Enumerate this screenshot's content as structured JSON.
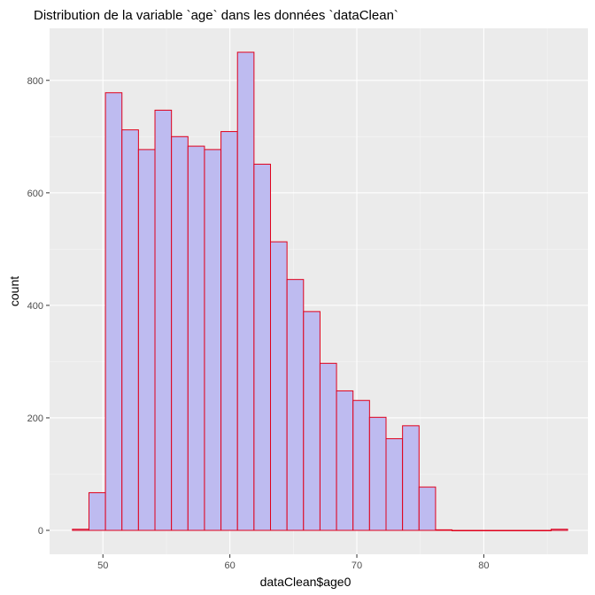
{
  "chart_data": {
    "type": "bar",
    "title": "Distribution de la variable `age` dans les données `dataClean`",
    "xlabel": "dataClean$age0",
    "ylabel": "count",
    "xlim": [
      45.8,
      88.2
    ],
    "ylim": [
      -42.5,
      892.5
    ],
    "x_ticks": [
      50,
      60,
      70,
      80
    ],
    "y_ticks": [
      0,
      200,
      400,
      600,
      800
    ],
    "bin_width": 1.3,
    "bins": [
      {
        "x0": 47.6,
        "x1": 48.9,
        "count": 2
      },
      {
        "x0": 48.9,
        "x1": 50.2,
        "count": 67
      },
      {
        "x0": 50.2,
        "x1": 51.5,
        "count": 778
      },
      {
        "x0": 51.5,
        "x1": 52.8,
        "count": 712
      },
      {
        "x0": 52.8,
        "x1": 54.1,
        "count": 677
      },
      {
        "x0": 54.1,
        "x1": 55.4,
        "count": 747
      },
      {
        "x0": 55.4,
        "x1": 56.7,
        "count": 700
      },
      {
        "x0": 56.7,
        "x1": 58.0,
        "count": 683
      },
      {
        "x0": 58.0,
        "x1": 59.3,
        "count": 677
      },
      {
        "x0": 59.3,
        "x1": 60.6,
        "count": 709
      },
      {
        "x0": 60.6,
        "x1": 61.9,
        "count": 850
      },
      {
        "x0": 61.9,
        "x1": 63.2,
        "count": 651
      },
      {
        "x0": 63.2,
        "x1": 64.5,
        "count": 513
      },
      {
        "x0": 64.5,
        "x1": 65.8,
        "count": 446
      },
      {
        "x0": 65.8,
        "x1": 67.1,
        "count": 389
      },
      {
        "x0": 67.1,
        "x1": 68.4,
        "count": 297
      },
      {
        "x0": 68.4,
        "x1": 69.7,
        "count": 248
      },
      {
        "x0": 69.7,
        "x1": 71.0,
        "count": 231
      },
      {
        "x0": 71.0,
        "x1": 72.3,
        "count": 201
      },
      {
        "x0": 72.3,
        "x1": 73.6,
        "count": 163
      },
      {
        "x0": 73.6,
        "x1": 74.9,
        "count": 186
      },
      {
        "x0": 74.9,
        "x1": 76.2,
        "count": 77
      },
      {
        "x0": 76.2,
        "x1": 77.5,
        "count": 1
      },
      {
        "x0": 77.5,
        "x1": 78.8,
        "count": 0
      },
      {
        "x0": 78.8,
        "x1": 80.1,
        "count": 0
      },
      {
        "x0": 80.1,
        "x1": 81.4,
        "count": 0
      },
      {
        "x0": 81.4,
        "x1": 82.7,
        "count": 0
      },
      {
        "x0": 82.7,
        "x1": 84.0,
        "count": 0
      },
      {
        "x0": 84.0,
        "x1": 85.3,
        "count": 0
      },
      {
        "x0": 85.3,
        "x1": 86.6,
        "count": 2
      }
    ],
    "grid": true,
    "legend": "none"
  },
  "colors": {
    "panel_background": "#ebebeb",
    "grid_major": "#ffffff",
    "grid_minor": "#f5f5f5",
    "bar_fill": "#bebbf0",
    "bar_outline": "#e0001b",
    "tick_label": "#4d4d4d",
    "tick_mark": "#333333"
  }
}
